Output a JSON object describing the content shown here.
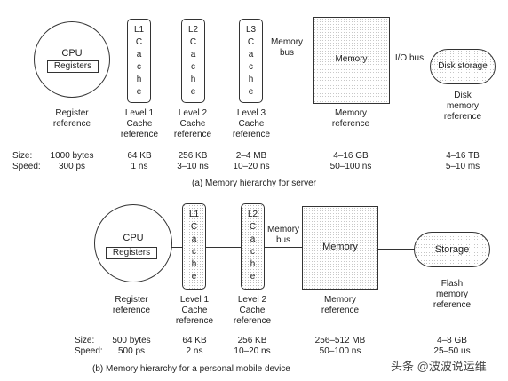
{
  "server": {
    "cpu": "CPU",
    "registers": "Registers",
    "l1": [
      "L1",
      "C",
      "a",
      "c",
      "h",
      "e"
    ],
    "l2": [
      "L2",
      "C",
      "a",
      "c",
      "h",
      "e"
    ],
    "l3": [
      "L3",
      "C",
      "a",
      "c",
      "h",
      "e"
    ],
    "memory_bus": [
      "Memory",
      "bus"
    ],
    "memory": "Memory",
    "io_bus": "I/O bus",
    "disk": "Disk storage",
    "ref_register": [
      "Register",
      "reference"
    ],
    "ref_l1": [
      "Level 1",
      "Cache",
      "reference"
    ],
    "ref_l2": [
      "Level 2",
      "Cache",
      "reference"
    ],
    "ref_l3": [
      "Level 3",
      "Cache",
      "reference"
    ],
    "ref_memory": [
      "Memory",
      "reference"
    ],
    "ref_disk": [
      "Disk",
      "memory",
      "reference"
    ],
    "size_label": "Size:",
    "speed_label": "Speed:",
    "sizes": [
      "1000 bytes",
      "64 KB",
      "256 KB",
      "2–4 MB",
      "4–16 GB",
      "4–16 TB"
    ],
    "speeds": [
      "300 ps",
      "1 ns",
      "3–10 ns",
      "10–20 ns",
      "50–100 ns",
      "5–10 ms"
    ],
    "caption": "(a) Memory hierarchy for server"
  },
  "mobile": {
    "cpu": "CPU",
    "registers": "Registers",
    "l1": [
      "L1",
      "C",
      "a",
      "c",
      "h",
      "e"
    ],
    "l2": [
      "L2",
      "C",
      "a",
      "c",
      "h",
      "e"
    ],
    "memory_bus": [
      "Memory",
      "bus"
    ],
    "memory": "Memory",
    "storage": "Storage",
    "ref_register": [
      "Register",
      "reference"
    ],
    "ref_l1": [
      "Level 1",
      "Cache",
      "reference"
    ],
    "ref_l2": [
      "Level 2",
      "Cache",
      "reference"
    ],
    "ref_memory": [
      "Memory",
      "reference"
    ],
    "ref_flash": [
      "Flash",
      "memory",
      "reference"
    ],
    "size_label": "Size:",
    "speed_label": "Speed:",
    "sizes": [
      "500 bytes",
      "64 KB",
      "256 KB",
      "256–512 MB",
      "4–8 GB"
    ],
    "speeds": [
      "500 ps",
      "2 ns",
      "10–20 ns",
      "50–100 ns",
      "25–50 us"
    ],
    "caption": "(b) Memory hierarchy for a personal mobile device"
  },
  "watermark": "头条 @波波说运维"
}
